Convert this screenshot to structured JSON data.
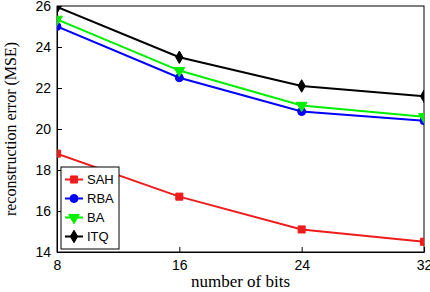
{
  "chart_data": {
    "type": "line",
    "x_label": "number of bits",
    "y_label": "reconstruction error (MSE)",
    "x": [
      8,
      16,
      24,
      32
    ],
    "xlim": [
      8,
      32
    ],
    "xticks": [
      8,
      16,
      24,
      32
    ],
    "ylim": [
      14,
      26
    ],
    "yticks": [
      14,
      16,
      18,
      20,
      22,
      24,
      26
    ],
    "legend": "lower left",
    "series": [
      {
        "name": "SAH",
        "color": "#ee1c1c",
        "marker": "square",
        "values": [
          18.8,
          16.7,
          15.1,
          14.5
        ]
      },
      {
        "name": "RBA",
        "color": "#0000ff",
        "marker": "circle",
        "values": [
          25.0,
          22.5,
          20.85,
          20.4
        ]
      },
      {
        "name": "BA",
        "color": "#00ee00",
        "marker": "triangle-down",
        "values": [
          25.35,
          22.85,
          21.15,
          20.6
        ]
      },
      {
        "name": "ITQ",
        "color": "#000000",
        "marker": "diamond",
        "values": [
          25.95,
          23.5,
          22.1,
          21.6
        ]
      }
    ]
  }
}
